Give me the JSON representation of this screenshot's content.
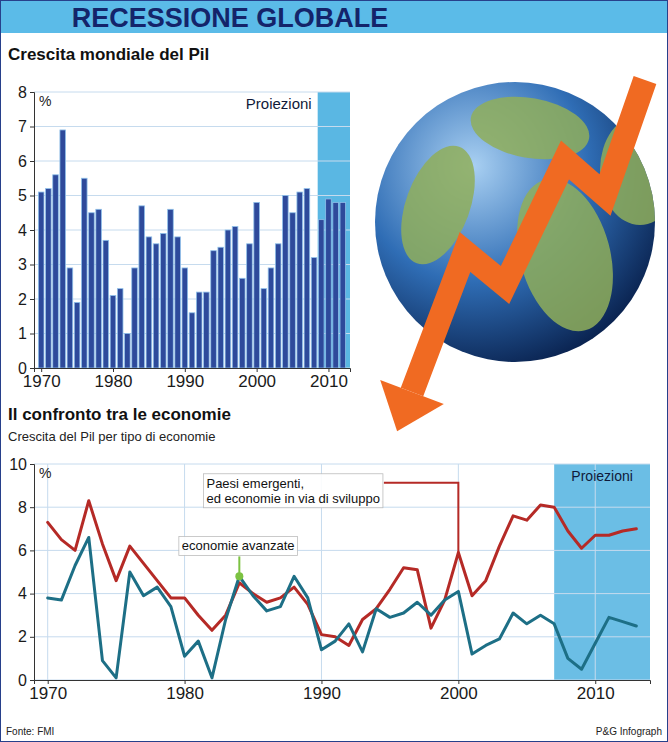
{
  "title": "RECESSIONE GLOBALE",
  "source": "Fonte: FMI",
  "credit": "P&G Infograph",
  "chart_data": [
    {
      "type": "bar",
      "title": "Crescita mondiale del Pil",
      "ylabel": "%",
      "x": [
        1970,
        1971,
        1972,
        1973,
        1974,
        1975,
        1976,
        1977,
        1978,
        1979,
        1980,
        1981,
        1982,
        1983,
        1984,
        1985,
        1986,
        1987,
        1988,
        1989,
        1990,
        1991,
        1992,
        1993,
        1994,
        1995,
        1996,
        1997,
        1998,
        1999,
        2000,
        2001,
        2002,
        2003,
        2004,
        2005,
        2006,
        2007,
        2008,
        2009,
        2010,
        2011,
        2012
      ],
      "values": [
        5.1,
        5.2,
        5.6,
        6.9,
        2.9,
        1.9,
        5.5,
        4.5,
        4.6,
        3.7,
        2.1,
        2.3,
        1.0,
        2.9,
        4.7,
        3.8,
        3.6,
        3.9,
        4.6,
        3.8,
        2.9,
        1.6,
        2.2,
        2.2,
        3.4,
        3.5,
        4.0,
        4.1,
        2.6,
        3.6,
        4.8,
        2.3,
        2.9,
        3.6,
        5.0,
        4.5,
        5.1,
        5.2,
        3.2,
        4.3,
        4.9,
        4.8,
        4.8
      ],
      "color": "#2e4a9b",
      "xlim": [
        1969,
        2013
      ],
      "xticks": [
        1970,
        1980,
        1990,
        2000,
        2010
      ],
      "ylim": [
        0,
        8
      ],
      "yticks": [
        0,
        1,
        2,
        3,
        4,
        5,
        6,
        7,
        8
      ],
      "grid": true,
      "annotations": [
        {
          "text": "Proiezioni",
          "x_start": 2008.5,
          "x_end": 2013
        }
      ]
    },
    {
      "type": "line",
      "title": "Il confronto tra le economie",
      "subtitle": "Crescita del Pil per tipo di economie",
      "ylabel": "%",
      "x": [
        1970,
        1971,
        1972,
        1973,
        1974,
        1975,
        1976,
        1977,
        1978,
        1979,
        1980,
        1981,
        1982,
        1983,
        1984,
        1985,
        1986,
        1987,
        1988,
        1989,
        1990,
        1991,
        1992,
        1993,
        1994,
        1995,
        1996,
        1997,
        1998,
        1999,
        2000,
        2001,
        2002,
        2003,
        2004,
        2005,
        2006,
        2007,
        2008,
        2009,
        2010,
        2011,
        2012,
        2013
      ],
      "series": [
        {
          "name": "Paesi emergenti, ed economie in via di sviluppo",
          "color": "#b52a26",
          "values": [
            7.3,
            6.5,
            6.0,
            8.3,
            6.3,
            4.6,
            6.2,
            5.4,
            4.6,
            3.8,
            3.8,
            3.0,
            2.3,
            3.0,
            4.5,
            4.0,
            3.6,
            3.8,
            4.3,
            3.5,
            2.1,
            2.0,
            1.6,
            2.8,
            3.3,
            4.2,
            5.2,
            5.1,
            2.4,
            3.7,
            5.9,
            3.9,
            4.6,
            6.2,
            7.6,
            7.4,
            8.1,
            8.0,
            6.9,
            6.1,
            6.7,
            6.7,
            6.9,
            7.0
          ]
        },
        {
          "name": "economie avanzate",
          "color": "#1d6f86",
          "values": [
            3.8,
            3.7,
            5.3,
            6.6,
            0.9,
            0.1,
            5.0,
            3.9,
            4.3,
            3.4,
            1.1,
            1.8,
            0.1,
            2.8,
            4.8,
            3.9,
            3.2,
            3.4,
            4.8,
            3.8,
            1.4,
            1.8,
            2.6,
            1.3,
            3.3,
            2.9,
            3.1,
            3.6,
            3.0,
            3.7,
            4.1,
            1.2,
            1.6,
            1.9,
            3.1,
            2.6,
            3.0,
            2.6,
            1.0,
            0.5,
            1.7,
            2.9,
            2.7,
            2.5
          ]
        }
      ],
      "xlim": [
        1969,
        2014
      ],
      "xticks": [
        1970,
        1980,
        1990,
        2000,
        2010
      ],
      "ylim": [
        0,
        10
      ],
      "yticks": [
        0,
        2,
        4,
        6,
        8,
        10
      ],
      "grid": true,
      "legend": "top",
      "annotations": [
        {
          "text": "Proiezioni",
          "x_start": 2007,
          "x_end": 2014
        }
      ]
    }
  ]
}
